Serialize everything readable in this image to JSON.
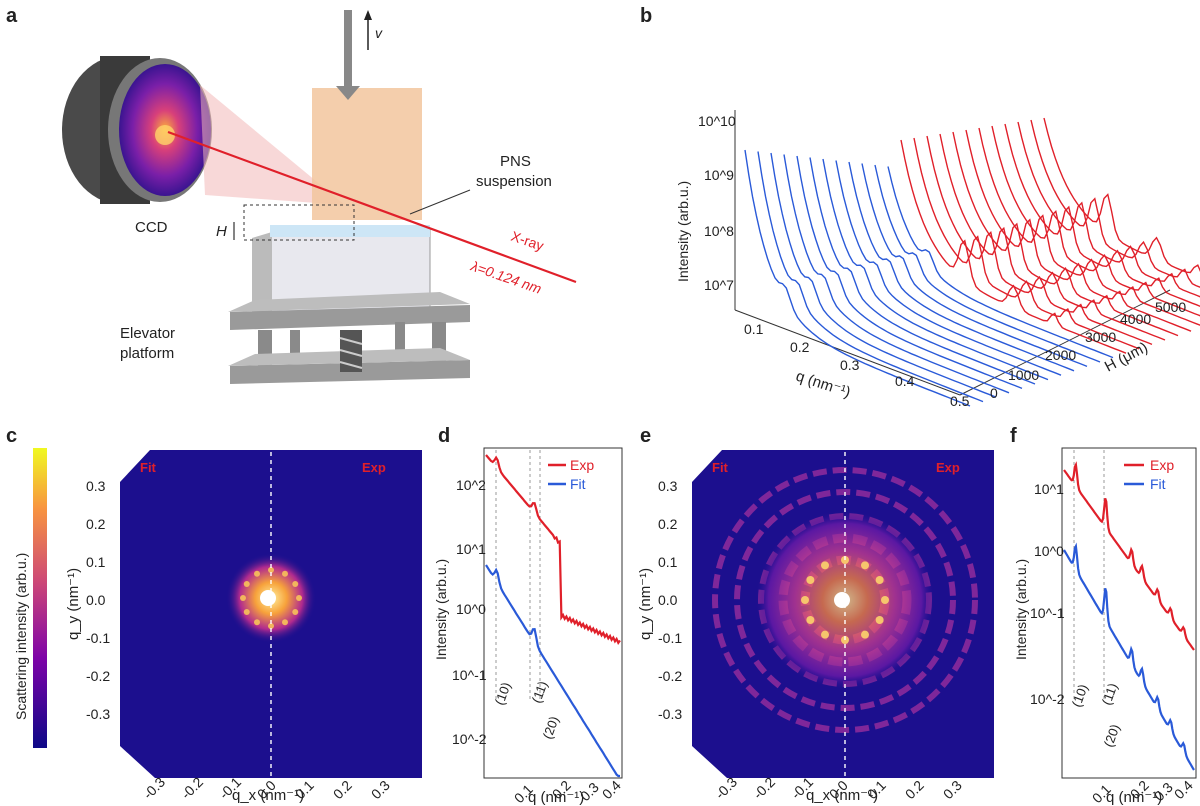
{
  "panels": {
    "a": {
      "label": "a",
      "velocity": "v",
      "pns": [
        "PNS",
        "suspension"
      ],
      "ccd": "CCD",
      "height": "H",
      "xray": "X-ray",
      "wavelength": "λ=0.124 nm",
      "elevator": [
        "Elevator",
        "platform"
      ]
    },
    "b": {
      "label": "b",
      "ylabel": "Intensity (arb.u.)",
      "yticks": [
        "10^10",
        "10^9",
        "10^8",
        "10^7"
      ],
      "xlabel": "q (nm⁻¹)",
      "xticks": [
        "0.1",
        "0.2",
        "0.3",
        "0.4",
        "0.5"
      ],
      "hlabel": "H (μm)",
      "hticks": [
        "0",
        "1000",
        "2000",
        "3000",
        "4000",
        "5000"
      ]
    },
    "c": {
      "label": "c",
      "colorbar_label": "Scattering intensity (arb.u.)",
      "fit": "Fit",
      "exp": "Exp",
      "yticks": [
        "0.3",
        "0.2",
        "0.1",
        "0.0",
        "-0.1",
        "-0.2",
        "-0.3"
      ],
      "xticks": [
        "-0.3",
        "-0.2",
        "-0.1",
        "0.0",
        "0.1",
        "0.2",
        "0.3"
      ],
      "ylabel": "q_y (nm⁻¹)",
      "xlabel": "q_x (nm⁻¹)"
    },
    "d": {
      "label": "d",
      "legend": [
        "Exp",
        "Fit"
      ],
      "ylabel": "Intensity (arb.u.)",
      "yticks": [
        "10^2",
        "10^1",
        "10^0",
        "10^-1",
        "10^-2"
      ],
      "xticks": [
        "0.1",
        "0.2",
        "0.3",
        "0.4"
      ],
      "xlabel": "q (nm⁻¹)",
      "peaks": [
        "(10)",
        "(11)",
        "(20)"
      ]
    },
    "e": {
      "label": "e",
      "fit": "Fit",
      "exp": "Exp",
      "yticks": [
        "0.3",
        "0.2",
        "0.1",
        "0.0",
        "-0.1",
        "-0.2",
        "-0.3"
      ],
      "xticks": [
        "-0.3",
        "-0.2",
        "-0.1",
        "0.0",
        "0.1",
        "0.2",
        "0.3"
      ],
      "ylabel": "q_y (nm⁻¹)",
      "xlabel": "q_x (nm⁻¹)"
    },
    "f": {
      "label": "f",
      "legend": [
        "Exp",
        "Fit"
      ],
      "ylabel": "Intensity (arb.u.)",
      "yticks": [
        "10^1",
        "10^0",
        "10^-1",
        "10^-2"
      ],
      "xticks": [
        "0.1",
        "0.2",
        "0.3",
        "0.4"
      ],
      "xlabel": "q (nm⁻¹)",
      "peaks": [
        "(10)",
        "(11)",
        "(20)"
      ]
    }
  },
  "colors": {
    "exp": "#e0202a",
    "fit": "#2a5ad8",
    "map_bg": "#1c0f8e"
  }
}
